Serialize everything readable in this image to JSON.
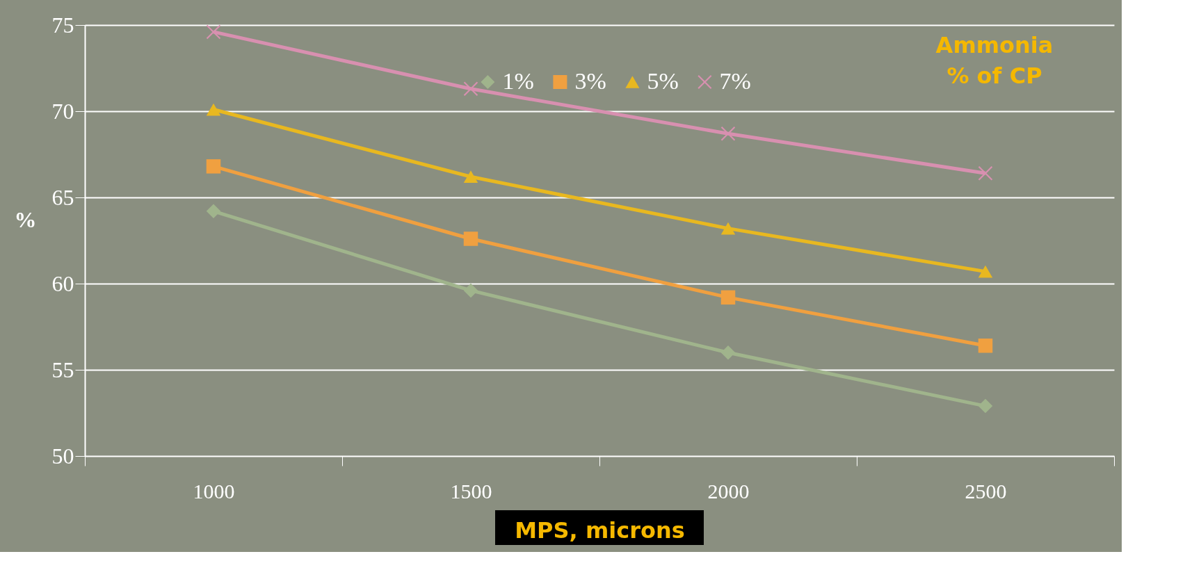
{
  "chart_data": {
    "type": "line",
    "xlabel": "MPS, microns",
    "ylabel": "%",
    "categories": [
      "1000",
      "1500",
      "2000",
      "2500"
    ],
    "series": [
      {
        "name": "1%",
        "color": "#a0b48c",
        "marker": "diamond",
        "values": [
          64.2,
          59.6,
          56.0,
          52.9
        ]
      },
      {
        "name": "3%",
        "color": "#f0a040",
        "marker": "square",
        "values": [
          66.8,
          62.6,
          59.2,
          56.4
        ]
      },
      {
        "name": "5%",
        "color": "#e8b820",
        "marker": "triangle",
        "values": [
          70.1,
          66.2,
          63.2,
          60.7
        ]
      },
      {
        "name": "7%",
        "color": "#d890b0",
        "marker": "cross",
        "values": [
          74.6,
          71.3,
          68.7,
          66.4
        ]
      }
    ],
    "ylim": [
      50,
      75
    ],
    "yticks": [
      50,
      55,
      60,
      65,
      70,
      75
    ],
    "grid": "y",
    "legend": "top",
    "line_style": "solid",
    "annotations": [
      "Ammonia\n% of CP"
    ]
  }
}
